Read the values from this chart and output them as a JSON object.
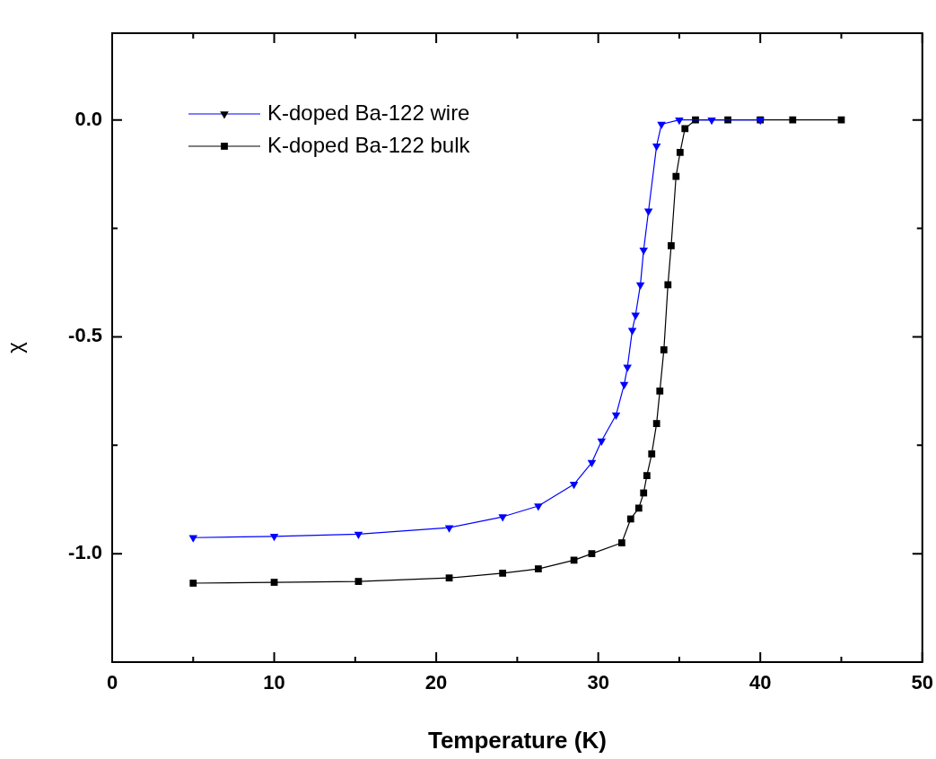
{
  "chart_data": {
    "type": "line",
    "xlabel": "Temperature (K)",
    "ylabel": "χ",
    "xlim": [
      0,
      50
    ],
    "xticks": [
      0,
      {
        "value": 5,
        "label": null
      },
      10,
      {
        "value": 15,
        "label": null
      },
      20,
      {
        "value": 25,
        "label": null
      },
      30,
      {
        "value": 35,
        "label": null
      },
      40,
      {
        "value": 45,
        "label": null
      },
      50
    ],
    "ylim": [
      -1.25,
      0.2
    ],
    "yticks": [
      {
        "value": -1.25,
        "label": null
      },
      {
        "value": -1,
        "label": "-1.0"
      },
      {
        "value": -0.75,
        "label": null
      },
      {
        "value": -0.5,
        "label": "-0.5"
      },
      {
        "value": -0.25,
        "label": null
      },
      {
        "value": 0,
        "label": "0.0"
      }
    ],
    "grid": false,
    "legend": "top left",
    "line_style": "solid",
    "series": [
      {
        "name": "K-doped Ba-122 wire",
        "color": "#0000ff",
        "marker": "triangle",
        "x": [
          5,
          10,
          15.2,
          20.8,
          24.1,
          26.3,
          28.5,
          29.6,
          30.2,
          31.1,
          31.6,
          31.8,
          32.1,
          32.3,
          32.6,
          32.8,
          33.1,
          33.6,
          33.9,
          35,
          37,
          40
        ],
        "values": [
          -0.963,
          -0.96,
          -0.955,
          -0.94,
          -0.915,
          -0.89,
          -0.84,
          -0.79,
          -0.74,
          -0.68,
          -0.61,
          -0.57,
          -0.485,
          -0.45,
          -0.38,
          -0.3,
          -0.21,
          -0.06,
          -0.01,
          0,
          0,
          0
        ]
      },
      {
        "name": "K-doped Ba-122 bulk",
        "color": "#000000",
        "marker": "square",
        "x": [
          5,
          10,
          15.2,
          20.8,
          24.1,
          26.3,
          28.5,
          29.6,
          31.45,
          32,
          32.5,
          32.8,
          33,
          33.3,
          33.6,
          33.8,
          34.05,
          34.3,
          34.5,
          34.8,
          35.05,
          35.35,
          36,
          38,
          40,
          42,
          45
        ],
        "values": [
          -1.068,
          -1.066,
          -1.064,
          -1.056,
          -1.045,
          -1.035,
          -1.015,
          -1.0,
          -0.975,
          -0.92,
          -0.895,
          -0.86,
          -0.82,
          -0.77,
          -0.7,
          -0.625,
          -0.53,
          -0.38,
          -0.29,
          -0.13,
          -0.075,
          -0.02,
          0,
          0,
          0,
          0,
          0
        ]
      }
    ]
  }
}
